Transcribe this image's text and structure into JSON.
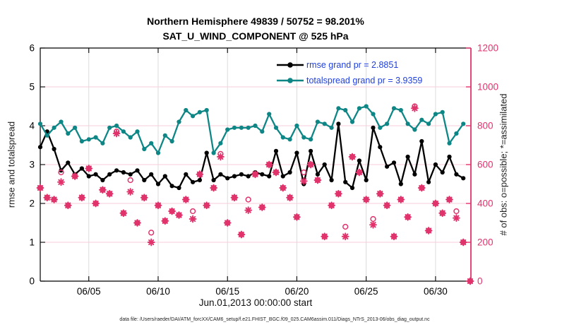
{
  "caption": "data file: /Users/raeder/DAI/ATM_forcXX/CAM6_setup/f.e21.FHIST_BGC.f09_025.CAM6assim.011/Diags_NTrS_2013-06/obs_diag_output.nc",
  "colors": {
    "pink": "#e0336c",
    "teal": "#0e8686",
    "black": "#000000",
    "legend_text": "#2040df",
    "grid_horizontal": "#f6cdd8",
    "grid_vertical": "#d8d8d8",
    "frame": "#000000"
  },
  "chart_data": {
    "type": "line",
    "title": "Northern Hemisphere 49839 / 50752 = 98.201%",
    "subtitle": "SAT_U_WIND_COMPONENT @ 525 hPa",
    "xlabel": "Jun.01,2013 00:00:00 start",
    "ylabel_left": "rmse and totalspread",
    "ylabel_right": "# of obs: o=possible; *=assimilated",
    "x_unit": "days since Jun.01,2013 00:00",
    "x_start": 0.5,
    "x_step": 0.5,
    "x_range": [
      0.5,
      31.55
    ],
    "ylim_left": [
      0,
      6
    ],
    "ylim_right": [
      0,
      1200
    ],
    "y_ticks_left": [
      0,
      1,
      2,
      3,
      4,
      5,
      6
    ],
    "y_ticks_right": [
      0,
      200,
      400,
      600,
      800,
      1000,
      1200
    ],
    "x_ticks": {
      "days": [
        4,
        9,
        14,
        19,
        24,
        29
      ],
      "labels": [
        "06/05",
        "06/10",
        "06/15",
        "06/20",
        "06/25",
        "06/30"
      ]
    },
    "grid": true,
    "legend_position": "top-right-inside",
    "series": [
      {
        "name": "rmse",
        "legend_label": "rmse grand pr = 2.8851",
        "grand_mean": 2.8851,
        "axis": "left",
        "color": "#000000",
        "marker": "filled-circle",
        "line": true,
        "values": [
          3.45,
          3.85,
          3.4,
          2.85,
          3.05,
          2.75,
          2.9,
          2.7,
          2.75,
          2.6,
          2.75,
          2.85,
          2.8,
          2.75,
          2.85,
          2.6,
          2.75,
          2.5,
          2.7,
          2.45,
          2.4,
          2.75,
          2.55,
          2.6,
          3.3,
          2.6,
          2.75,
          2.65,
          2.7,
          2.75,
          2.7,
          2.8,
          2.75,
          2.7,
          3.35,
          2.7,
          2.8,
          3.3,
          2.5,
          3.35,
          2.75,
          3.0,
          2.6,
          4.05,
          2.55,
          2.4,
          3.1,
          2.6,
          3.95,
          3.45,
          2.95,
          3.05,
          2.5,
          3.2,
          2.75,
          3.6,
          2.55,
          3.0,
          2.8,
          3.2,
          2.75,
          2.65,
          null
        ]
      },
      {
        "name": "totalspread",
        "legend_label": "totalspread grand pr = 3.9359",
        "grand_mean": 3.9359,
        "axis": "left",
        "color": "#0e8686",
        "marker": "filled-circle",
        "line": true,
        "values": [
          4.05,
          3.75,
          3.95,
          4.1,
          3.8,
          3.95,
          3.6,
          3.65,
          3.7,
          3.55,
          3.95,
          4.0,
          3.85,
          3.7,
          3.85,
          3.4,
          3.55,
          3.3,
          3.75,
          3.6,
          4.1,
          4.4,
          4.25,
          4.35,
          4.4,
          3.3,
          3.55,
          3.9,
          3.95,
          3.95,
          3.95,
          4.0,
          3.85,
          4.3,
          3.95,
          3.7,
          3.65,
          4.0,
          3.7,
          3.65,
          4.1,
          4.05,
          3.95,
          4.45,
          4.4,
          4.1,
          4.45,
          4.5,
          4.3,
          3.95,
          4.05,
          4.45,
          4.4,
          4.05,
          3.9,
          4.15,
          4.05,
          4.3,
          4.35,
          3.55,
          3.8,
          4.05,
          null
        ]
      },
      {
        "name": "possible-obs",
        "legend_label": "",
        "axis": "right",
        "color": "#e0336c",
        "marker": "open-circle",
        "line": false,
        "values": [
          480,
          430,
          420,
          560,
          390,
          540,
          430,
          580,
          400,
          470,
          450,
          770,
          350,
          520,
          300,
          430,
          250,
          390,
          310,
          360,
          340,
          420,
          360,
          550,
          390,
          480,
          655,
          300,
          430,
          240,
          420,
          550,
          380,
          600,
          560,
          480,
          430,
          330,
          560,
          600,
          520,
          230,
          390,
          450,
          280,
          640,
          560,
          420,
          320,
          450,
          390,
          230,
          420,
          330,
          900,
          480,
          260,
          400,
          350,
          420,
          360,
          200,
          0
        ]
      },
      {
        "name": "assimilated-obs",
        "legend_label": "",
        "axis": "right",
        "color": "#e0336c",
        "marker": "asterisk",
        "line": false,
        "values": [
          480,
          430,
          420,
          510,
          390,
          540,
          430,
          580,
          400,
          470,
          450,
          760,
          350,
          460,
          300,
          430,
          200,
          390,
          310,
          360,
          340,
          420,
          320,
          550,
          390,
          480,
          640,
          300,
          430,
          240,
          365,
          550,
          380,
          600,
          560,
          480,
          430,
          330,
          515,
          600,
          520,
          230,
          390,
          450,
          230,
          640,
          560,
          420,
          290,
          450,
          390,
          230,
          420,
          330,
          890,
          480,
          260,
          400,
          350,
          420,
          325,
          200,
          0
        ]
      }
    ]
  }
}
